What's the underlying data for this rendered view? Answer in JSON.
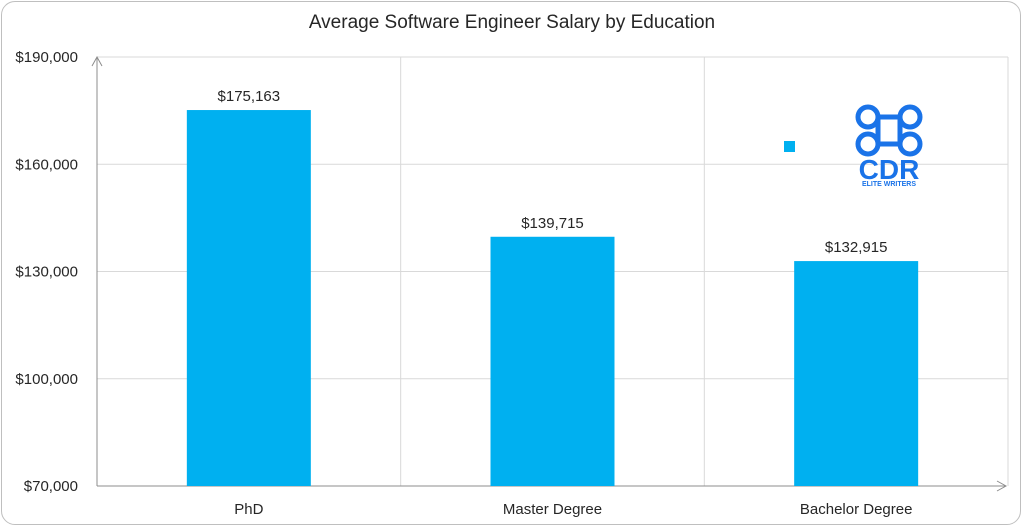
{
  "chart_data": {
    "type": "bar",
    "title": "Average Software Engineer Salary by Education",
    "categories": [
      "PhD",
      "Master Degree",
      "Bachelor Degree"
    ],
    "values": [
      175163,
      139715,
      132915
    ],
    "value_labels": [
      "$175,163",
      "$139,715",
      "$132,915"
    ],
    "y_ticks": [
      {
        "value": 70000,
        "label": "$70,000"
      },
      {
        "value": 100000,
        "label": "$100,000"
      },
      {
        "value": 130000,
        "label": "$130,000"
      },
      {
        "value": 160000,
        "label": "$160,000"
      },
      {
        "value": 190000,
        "label": "$190,000"
      }
    ],
    "ylim": [
      70000,
      190000
    ],
    "grid": true,
    "bar_color": "#00b0f0"
  },
  "logo": {
    "text": "CDR",
    "subtext": "ELITE WRITERS",
    "color": "#1a73e8"
  }
}
